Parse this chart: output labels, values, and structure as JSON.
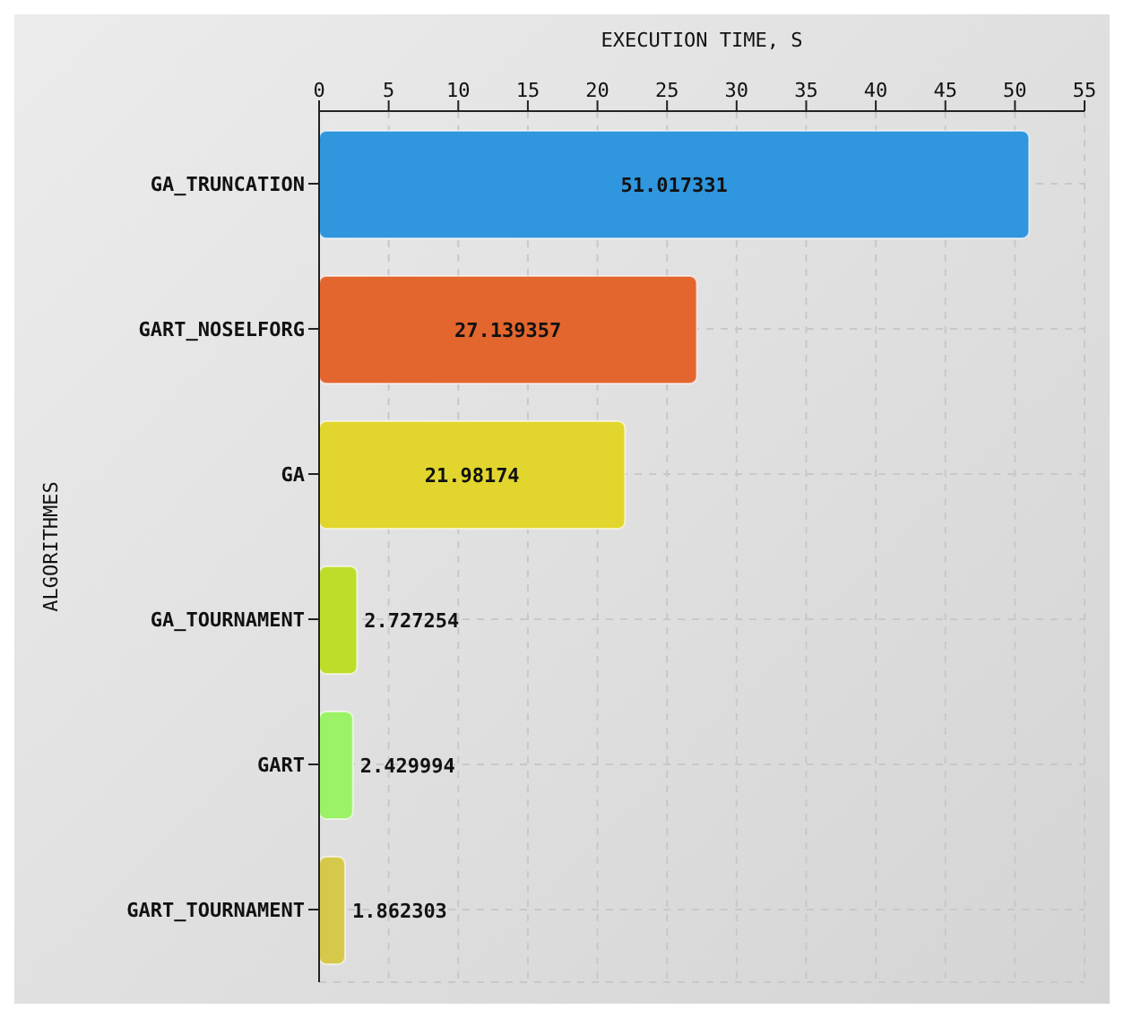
{
  "chart_data": {
    "type": "bar",
    "orientation": "horizontal",
    "xlabel": "EXECUTION TIME, S",
    "ylabel": "ALGORITHMES",
    "categories": [
      "GA_TRUNCATION",
      "GART_NOSELFORG",
      "GA",
      "GA_TOURNAMENT",
      "GART",
      "GART_TOURNAMENT"
    ],
    "values": [
      51.017331,
      27.139357,
      21.98174,
      2.727254,
      2.429994,
      1.862303
    ],
    "colors": [
      "#3096de",
      "#e2662e",
      "#e2d62e",
      "#bcde2a",
      "#9cf266",
      "#d6c84a"
    ],
    "xlim": [
      0,
      55
    ],
    "xticks": [
      0,
      5,
      10,
      15,
      20,
      25,
      30,
      35,
      40,
      45,
      50,
      55
    ],
    "grid": true,
    "data_labels": true
  }
}
